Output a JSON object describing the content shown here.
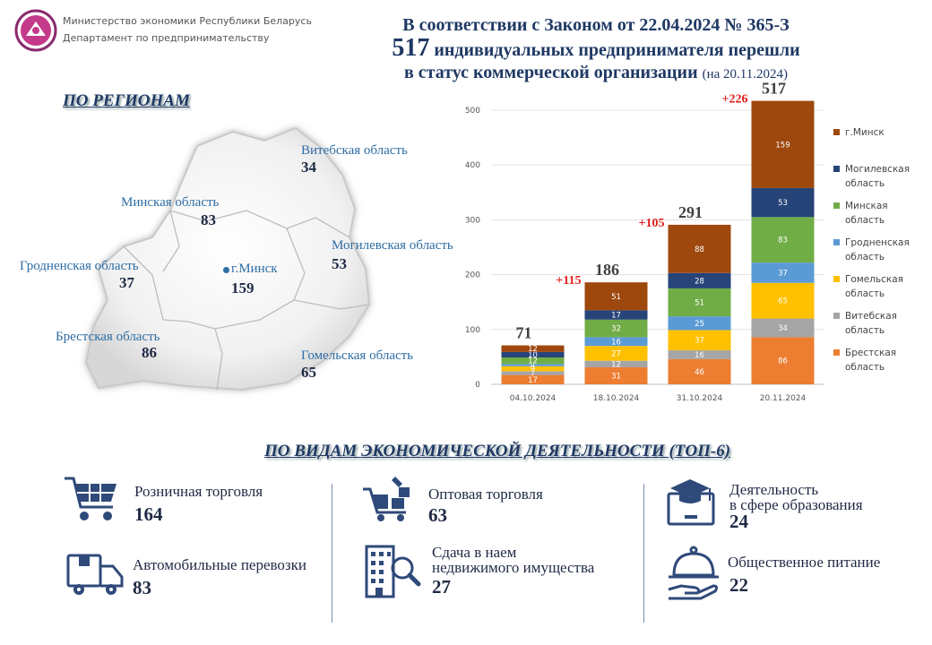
{
  "org": {
    "line1": "Министерство экономики Республики Беларусь",
    "line2": "Департамент по предпринимательству"
  },
  "headline": {
    "line1": "В соответствии с Законом от 22.04.2024 № 365-З",
    "count": "517",
    "line2_rest": "индивидуальных предпринимателя перешли",
    "line3": "в статус коммерческой организации",
    "date_note": "(на 20.11.2024)"
  },
  "regions": {
    "title": "ПО РЕГИОНАМ",
    "items": [
      {
        "name": "Витебская область",
        "value": "34"
      },
      {
        "name": "Минская область",
        "value": "83"
      },
      {
        "name": "Могилевская область",
        "value": "53"
      },
      {
        "name": "Гродненская область",
        "value": "37"
      },
      {
        "name": "г.Минск",
        "value": "159"
      },
      {
        "name": "Брестская область",
        "value": "86"
      },
      {
        "name": "Гомельская область",
        "value": "65"
      }
    ]
  },
  "chart_data": {
    "type": "bar",
    "stacked": true,
    "categories": [
      "04.10.2024",
      "18.10.2024",
      "31.10.2024",
      "20.11.2024"
    ],
    "ylim": [
      0,
      500
    ],
    "yticks": [
      0,
      100,
      200,
      300,
      400,
      500
    ],
    "grid": true,
    "legend_position": "right",
    "totals": [
      "71",
      "186",
      "291",
      "517"
    ],
    "increments": [
      "",
      "+115",
      "+105",
      "+226"
    ],
    "series": [
      {
        "name": "Брестская область",
        "color": "#ed7d31",
        "values": [
          17,
          31,
          46,
          86
        ]
      },
      {
        "name": "Витебская область",
        "color": "#a5a5a5",
        "values": [
          7,
          12,
          16,
          34
        ]
      },
      {
        "name": "Гомельская область",
        "color": "#ffc000",
        "values": [
          9,
          27,
          37,
          65
        ]
      },
      {
        "name": "Гродненская область",
        "color": "#5b9bd5",
        "values": [
          4,
          16,
          25,
          37
        ]
      },
      {
        "name": "Минская область",
        "color": "#70ad47",
        "values": [
          12,
          32,
          51,
          83
        ]
      },
      {
        "name": "Могилевская область",
        "color": "#264478",
        "values": [
          10,
          17,
          28,
          53
        ]
      },
      {
        "name": "г.Минск",
        "color": "#9e480e",
        "values": [
          12,
          51,
          88,
          159
        ]
      }
    ]
  },
  "activities": {
    "title": "ПО ВИДАМ ЭКОНОМИЧЕСКОЙ ДЕЯТЕЛЬНОСТИ  (ТОП-6)",
    "items": [
      {
        "label": "Розничная торговля",
        "value": "164",
        "icon": "shopping-cart-icon"
      },
      {
        "label": "Оптовая торговля",
        "value": "63",
        "icon": "wholesale-cart-icon"
      },
      {
        "label": "Деятельность",
        "label2": "в сфере образования",
        "value": "24",
        "icon": "education-icon"
      },
      {
        "label": "Автомобильные перевозки",
        "value": "83",
        "icon": "truck-icon"
      },
      {
        "label": "Сдача в наем",
        "label2": "недвижимого имущества",
        "value": "27",
        "icon": "building-search-icon"
      },
      {
        "label": "Общественное питание",
        "value": "22",
        "icon": "food-service-icon"
      }
    ]
  }
}
